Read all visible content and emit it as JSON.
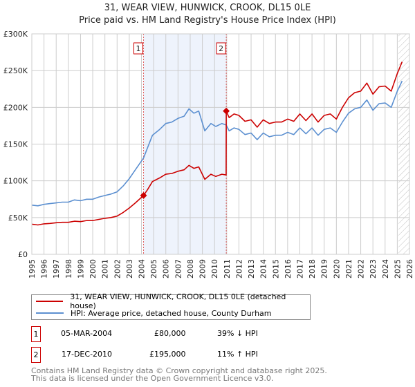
{
  "title": "31, WEAR VIEW, HUNWICK, CROOK, DL15 0LE",
  "subtitle": "Price paid vs. HM Land Registry's House Price Index (HPI)",
  "colors": {
    "price": "#cc0000",
    "hpi": "#5b8fd0",
    "shade": "#eef3fc"
  },
  "chart_data": {
    "type": "line",
    "title": "31, WEAR VIEW, HUNWICK, CROOK, DL15 0LE",
    "xlim": [
      1995,
      2026
    ],
    "ylim": [
      0,
      300000
    ],
    "y_ticks": [
      0,
      50000,
      100000,
      150000,
      200000,
      250000,
      300000
    ],
    "y_tick_labels": [
      "£0",
      "£50K",
      "£100K",
      "£150K",
      "£200K",
      "£250K",
      "£300K"
    ],
    "x_tick_labels": [
      "1995",
      "1996",
      "1997",
      "1998",
      "1999",
      "2000",
      "2001",
      "2002",
      "2003",
      "2004",
      "2005",
      "2006",
      "2007",
      "2008",
      "2009",
      "2010",
      "2011",
      "2012",
      "2013",
      "2014",
      "2015",
      "2016",
      "2017",
      "2018",
      "2019",
      "2020",
      "2021",
      "2022",
      "2023",
      "2024",
      "2025",
      "2026"
    ],
    "grid": true,
    "shaded_period": [
      2004.17,
      2010.96
    ],
    "forecast_hatch_from": 2025.1,
    "series": [
      {
        "name": "31, WEAR VIEW, HUNWICK, CROOK, DL15 0LE (detached house)",
        "x": [
          1995,
          1995.5,
          1996,
          1996.5,
          1997,
          1997.5,
          1998,
          1998.5,
          1999,
          1999.5,
          2000,
          2000.5,
          2001,
          2001.5,
          2002,
          2002.5,
          2003,
          2003.5,
          2004.17,
          2004.5,
          2004.9,
          2005.5,
          2006,
          2006.5,
          2007,
          2007.5,
          2007.9,
          2008.3,
          2008.7,
          2009.2,
          2009.7,
          2010.1,
          2010.6,
          2010.95,
          2010.96,
          2011.2,
          2011.6,
          2012,
          2012.5,
          2013,
          2013.5,
          2014,
          2014.5,
          2015,
          2015.5,
          2016,
          2016.5,
          2017,
          2017.5,
          2018,
          2018.5,
          2019,
          2019.5,
          2020,
          2020.5,
          2021,
          2021.5,
          2022,
          2022.5,
          2023,
          2023.5,
          2024,
          2024.5,
          2025,
          2025.4
        ],
        "values": [
          41,
          40,
          41.5,
          42,
          43,
          43.5,
          43.5,
          45,
          44.5,
          46,
          46,
          47.5,
          49,
          50,
          52,
          57,
          63,
          70,
          80,
          88,
          99,
          104,
          109,
          110,
          113,
          115,
          121,
          117,
          119,
          102,
          109,
          106,
          109,
          108,
          195,
          186,
          191,
          189,
          181,
          183,
          173,
          183,
          178,
          180,
          180,
          184,
          181,
          191,
          182,
          191,
          180,
          189,
          191,
          184,
          200,
          213,
          220,
          222,
          233,
          218,
          228,
          229,
          222,
          246,
          262
        ]
      },
      {
        "name": "HPI: Average price, detached house, County Durham",
        "x": [
          1995,
          1995.5,
          1996,
          1996.5,
          1997,
          1997.5,
          1998,
          1998.5,
          1999,
          1999.5,
          2000,
          2000.5,
          2001,
          2001.5,
          2002,
          2002.5,
          2003,
          2003.5,
          2004.17,
          2004.5,
          2004.9,
          2005.5,
          2006,
          2006.5,
          2007,
          2007.5,
          2007.9,
          2008.3,
          2008.7,
          2009.2,
          2009.7,
          2010.1,
          2010.6,
          2010.96,
          2011.2,
          2011.6,
          2012,
          2012.5,
          2013,
          2013.5,
          2014,
          2014.5,
          2015,
          2015.5,
          2016,
          2016.5,
          2017,
          2017.5,
          2018,
          2018.5,
          2019,
          2019.5,
          2020,
          2020.5,
          2021,
          2021.5,
          2022,
          2022.5,
          2023,
          2023.5,
          2024,
          2024.5,
          2025,
          2025.4
        ],
        "values": [
          67,
          66,
          68,
          69,
          70,
          71,
          71,
          74,
          73,
          75,
          75,
          78,
          80,
          82,
          85,
          93,
          103,
          115,
          131,
          145,
          162,
          170,
          178,
          180,
          185,
          188,
          198,
          192,
          195,
          168,
          178,
          174,
          178,
          176,
          168,
          172,
          170,
          163,
          165,
          156,
          165,
          160,
          162,
          162,
          166,
          163,
          172,
          164,
          172,
          162,
          170,
          172,
          166,
          180,
          192,
          198,
          200,
          210,
          196,
          205,
          206,
          200,
          222,
          236
        ]
      }
    ],
    "value_unit": "thousand GBP",
    "markers": [
      {
        "label": "1",
        "x": 2004.17,
        "value": 80
      },
      {
        "label": "2",
        "x": 2010.96,
        "value": 195
      }
    ]
  },
  "legend": {
    "price_label": "31, WEAR VIEW, HUNWICK, CROOK, DL15 0LE (detached house)",
    "hpi_label": "HPI: Average price, detached house, County Durham"
  },
  "transactions": [
    {
      "num": "1",
      "date": "05-MAR-2004",
      "price": "£80,000",
      "hpi": "39% ↓ HPI"
    },
    {
      "num": "2",
      "date": "17-DEC-2010",
      "price": "£195,000",
      "hpi": "11% ↑ HPI"
    }
  ],
  "footer": {
    "line1": "Contains HM Land Registry data © Crown copyright and database right 2025.",
    "line2": "This data is licensed under the Open Government Licence v3.0."
  }
}
